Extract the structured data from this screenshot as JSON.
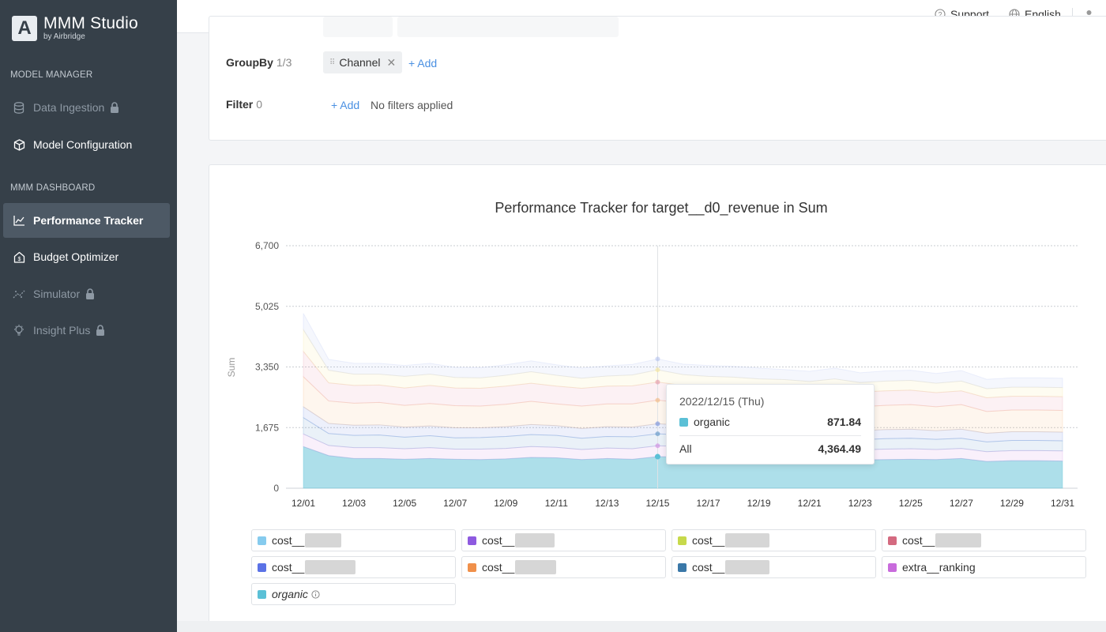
{
  "brand": {
    "name": "MMM Studio",
    "sub": "by Airbridge",
    "logo_letter": "A"
  },
  "sidebar": {
    "sections": [
      {
        "label": "MODEL MANAGER"
      },
      {
        "label": "MMM DASHBOARD"
      }
    ],
    "items": [
      {
        "label": "Data Ingestion",
        "icon": "database-icon",
        "locked": true
      },
      {
        "label": "Model Configuration",
        "icon": "cube-icon",
        "locked": false
      },
      {
        "label": "Performance Tracker",
        "icon": "line-chart-icon",
        "locked": false,
        "active": true
      },
      {
        "label": "Budget Optimizer",
        "icon": "house-dollar-icon",
        "locked": false
      },
      {
        "label": "Simulator",
        "icon": "scatter-trend-icon",
        "locked": true
      },
      {
        "label": "Insight Plus",
        "icon": "lightbulb-icon",
        "locked": true
      }
    ]
  },
  "topbar": {
    "support": "Support",
    "language": "English",
    "user_icon": "user-icon"
  },
  "filters": {
    "groupby": {
      "label": "GroupBy",
      "count": "1/3",
      "chip": "Channel",
      "add": "+ Add"
    },
    "filter": {
      "label": "Filter",
      "count": "0",
      "add": "+ Add",
      "empty": "No filters applied"
    }
  },
  "chart_data": {
    "type": "area",
    "title": "Performance Tracker for target__d0_revenue in Sum",
    "ylabel": "Sum",
    "ylim": [
      0,
      6700
    ],
    "yticks": [
      "0",
      "1,675",
      "3,350",
      "5,025",
      "6,700"
    ],
    "xticks": [
      "12/01",
      "12/03",
      "12/05",
      "12/07",
      "12/09",
      "12/11",
      "12/13",
      "12/15",
      "12/17",
      "12/19",
      "12/21",
      "12/23",
      "12/25",
      "12/27",
      "12/29",
      "12/31"
    ],
    "stacked": true,
    "highlight_date": "12/15",
    "series": [
      {
        "name": "organic",
        "color": "#5bc0d6",
        "values": [
          1150,
          900,
          820,
          820,
          800,
          820,
          800,
          790,
          810,
          850,
          840,
          790,
          820,
          800,
          872,
          860,
          820,
          820,
          800,
          790,
          790,
          810,
          780,
          790,
          800,
          790,
          820,
          740,
          760,
          760,
          750
        ]
      },
      {
        "name": "extra__ranking",
        "color": "#c86bdc",
        "values": [
          350,
          280,
          300,
          300,
          290,
          300,
          280,
          290,
          290,
          300,
          290,
          280,
          290,
          290,
          300,
          290,
          290,
          280,
          280,
          290,
          280,
          290,
          280,
          290,
          290,
          280,
          280,
          270,
          280,
          280,
          280
        ]
      },
      {
        "name": "cost__3",
        "color": "#2e75b6",
        "values": [
          450,
          330,
          340,
          350,
          320,
          330,
          310,
          320,
          330,
          330,
          330,
          310,
          320,
          330,
          330,
          320,
          320,
          310,
          300,
          290,
          290,
          300,
          280,
          290,
          290,
          280,
          280,
          270,
          280,
          280,
          280
        ]
      },
      {
        "name": "cost__4",
        "color": "#4a6ed6",
        "values": [
          300,
          280,
          280,
          280,
          280,
          270,
          280,
          270,
          270,
          280,
          270,
          270,
          270,
          270,
          280,
          270,
          270,
          260,
          260,
          250,
          250,
          260,
          250,
          250,
          250,
          240,
          250,
          240,
          240,
          240,
          240
        ]
      },
      {
        "name": "cost__5",
        "color": "#f2a65a",
        "values": [
          830,
          620,
          610,
          620,
          600,
          620,
          610,
          600,
          620,
          640,
          600,
          620,
          630,
          640,
          650,
          620,
          640,
          640,
          660,
          660,
          650,
          650,
          660,
          670,
          680,
          660,
          680,
          600,
          600,
          600,
          600
        ]
      },
      {
        "name": "cost__6",
        "color": "#e07a8f",
        "values": [
          700,
          500,
          490,
          480,
          480,
          500,
          490,
          490,
          500,
          500,
          490,
          490,
          490,
          500,
          500,
          480,
          470,
          460,
          440,
          440,
          420,
          420,
          410,
          400,
          400,
          390,
          380,
          380,
          380,
          380,
          380
        ]
      },
      {
        "name": "cost__7",
        "color": "#f6e07a",
        "values": [
          600,
          350,
          310,
          300,
          320,
          310,
          290,
          290,
          300,
          320,
          300,
          280,
          280,
          300,
          340,
          300,
          280,
          300,
          280,
          280,
          270,
          290,
          260,
          270,
          270,
          260,
          270,
          250,
          250,
          250,
          250
        ]
      },
      {
        "name": "cost__8",
        "color": "#9fb2ec",
        "values": [
          450,
          300,
          300,
          300,
          300,
          300,
          280,
          280,
          290,
          300,
          290,
          280,
          280,
          290,
          300,
          290,
          300,
          300,
          300,
          280,
          280,
          300,
          270,
          280,
          280,
          270,
          290,
          260,
          260,
          260,
          260
        ]
      }
    ]
  },
  "tooltip": {
    "date": "2022/12/15 (Thu)",
    "series": "organic",
    "value": "871.84",
    "total_label": "All",
    "total": "4,364.49",
    "color": "#5bc0d6"
  },
  "legend": [
    {
      "label": "cost__",
      "color": "#86cbee",
      "blur": 46
    },
    {
      "label": "cost__",
      "color": "#8e5ae0",
      "blur": 50
    },
    {
      "label": "cost__",
      "color": "#c7d94b",
      "blur": 56
    },
    {
      "label": "cost__",
      "color": "#d46a80",
      "blur": 58
    },
    {
      "label": "cost__",
      "color": "#5b72e6",
      "blur": 64
    },
    {
      "label": "cost__",
      "color": "#f0904a",
      "blur": 52
    },
    {
      "label": "cost__",
      "color": "#3a78a8",
      "blur": 56
    },
    {
      "label": "extra__ranking",
      "color": "#c86bdc",
      "blur": 0
    },
    {
      "label": "organic",
      "color": "#5bc0d6",
      "blur": 0,
      "italic": true,
      "info": true
    }
  ]
}
